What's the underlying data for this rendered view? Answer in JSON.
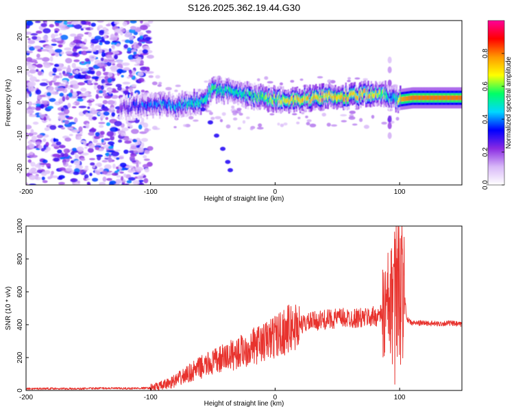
{
  "title": "S126.2025.362.19.44.G30",
  "chart_data": [
    {
      "type": "heatmap",
      "xlabel": "Height of straight line (km)",
      "ylabel": "Frequency (Hz)",
      "xlim": [
        -200,
        150
      ],
      "ylim": [
        -25,
        25
      ],
      "xticks": [
        -200,
        -100,
        0,
        100
      ],
      "yticks": [
        -20,
        -10,
        0,
        10,
        20
      ],
      "colorbar": {
        "label": "Normalized spectral amplitude",
        "ticks": [
          "0.0",
          "0.2",
          "0.4",
          "0.6",
          "0.8"
        ],
        "colors": [
          "#ffffff",
          "#d8b8f8",
          "#8a2be2",
          "#0000ff",
          "#00d8ff",
          "#00ff66",
          "#ffff00",
          "#ff9900",
          "#ff0000",
          "#ff0099"
        ]
      },
      "ridge": {
        "x": [
          -125,
          -110,
          -100,
          -90,
          -80,
          -70,
          -60,
          -50,
          -40,
          -30,
          -20,
          -10,
          0,
          10,
          20,
          30,
          40,
          50,
          60,
          70,
          80,
          88,
          92,
          96,
          100,
          110,
          120,
          130,
          140,
          150
        ],
        "freq": [
          -1.5,
          -1.0,
          -1.0,
          -0.5,
          -1.0,
          0.0,
          0.5,
          4.0,
          3.5,
          3.0,
          2.0,
          1.5,
          1.0,
          1.0,
          1.0,
          1.5,
          2.0,
          2.0,
          2.0,
          2.5,
          3.0,
          2.5,
          1.5,
          1.0,
          1.0,
          1.5,
          1.5,
          1.5,
          1.5,
          1.5
        ],
        "amplitude": [
          0.3,
          0.4,
          0.45,
          0.5,
          0.5,
          0.55,
          0.6,
          0.65,
          0.6,
          0.6,
          0.6,
          0.7,
          0.75,
          0.8,
          0.8,
          0.85,
          0.85,
          0.85,
          0.85,
          0.85,
          0.8,
          0.7,
          0.5,
          0.6,
          0.9,
          0.95,
          0.95,
          0.95,
          0.95,
          0.95
        ]
      },
      "noise_region_x": [
        -200,
        -100
      ]
    },
    {
      "type": "line",
      "xlabel": "Height of straight line (km)",
      "ylabel": "SNR (10 * v/v)",
      "xlim": [
        -200,
        150
      ],
      "ylim": [
        0,
        1000
      ],
      "xticks": [
        -200,
        -100,
        0,
        100
      ],
      "yticks": [
        0,
        200,
        400,
        600,
        800,
        1000
      ],
      "series": [
        {
          "name": "SNR",
          "color": "#e8332e",
          "x": [
            -200,
            -180,
            -160,
            -140,
            -120,
            -100,
            -90,
            -80,
            -70,
            -60,
            -50,
            -40,
            -30,
            -20,
            -10,
            0,
            10,
            20,
            30,
            40,
            50,
            60,
            70,
            80,
            85,
            90,
            94,
            96,
            98,
            100,
            102,
            104,
            106,
            110,
            120,
            130,
            140,
            150
          ],
          "y": [
            10,
            12,
            10,
            14,
            12,
            15,
            30,
            60,
            100,
            140,
            170,
            200,
            230,
            260,
            290,
            330,
            370,
            400,
            420,
            430,
            440,
            440,
            440,
            450,
            460,
            480,
            520,
            600,
            850,
            500,
            720,
            560,
            430,
            410,
            410,
            405,
            410,
            400
          ]
        }
      ]
    }
  ]
}
